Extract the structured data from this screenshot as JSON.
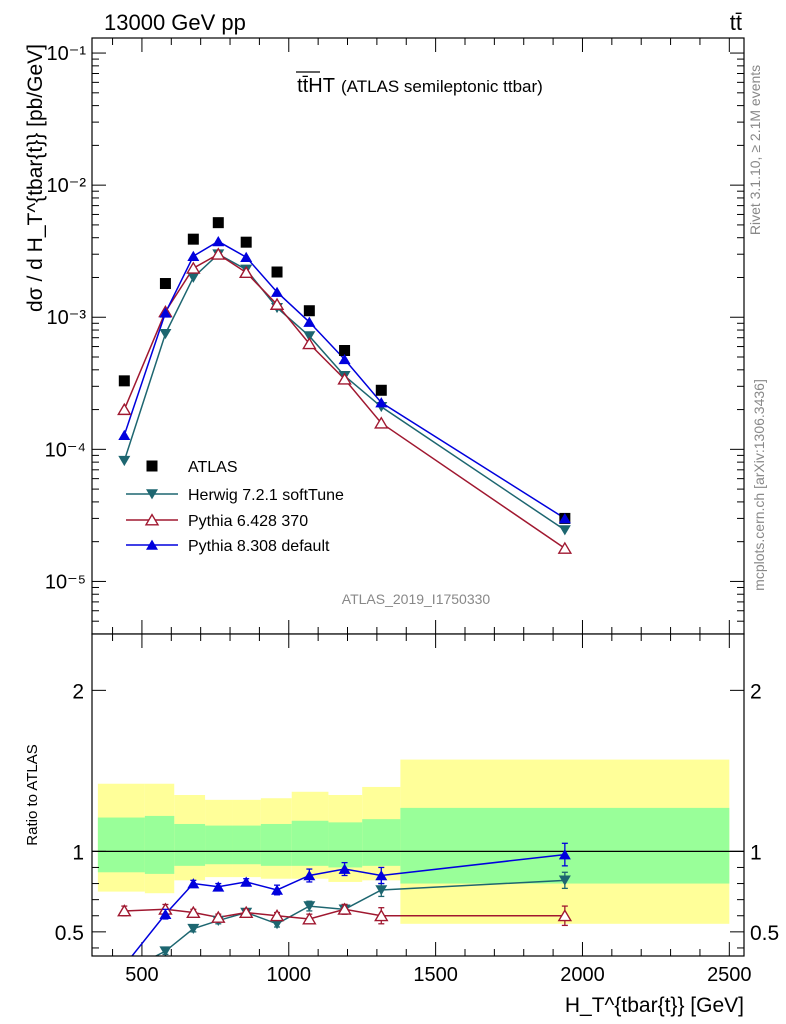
{
  "header": {
    "left": "13000 GeV pp",
    "right": "tt̄"
  },
  "side_text": {
    "rivet": "Rivet 3.1.10, ≥ 2.1M events",
    "mcplots": "mcplots.cern.ch [arXiv:1306.3436]"
  },
  "chart_data": [
    {
      "type": "line",
      "title_main": "tt̄HT",
      "title_sub": "(ATLAS semileptonic ttbar)",
      "watermark": "ATLAS_2019_I1750330",
      "ylabel": "dσ / d H_T^{tbar{t}} [pb/GeV]",
      "yscale": "log",
      "ylim": [
        4e-06,
        0.13
      ],
      "xlim": [
        330,
        2550
      ],
      "x": [
        440,
        580,
        675,
        760,
        855,
        960,
        1070,
        1190,
        1315,
        1940
      ],
      "legend_position": "bottom-left",
      "series": [
        {
          "name": "ATLAS",
          "color": "#000000",
          "marker": "square",
          "values": [
            0.00033,
            0.0018,
            0.0039,
            0.0052,
            0.0037,
            0.0022,
            0.00112,
            0.00056,
            0.00028,
            3e-05
          ]
        },
        {
          "name": "Herwig 7.2.1 softTune",
          "color": "#1d6670",
          "marker": "triangle-down",
          "values": [
            8.2e-05,
            0.00075,
            0.002,
            0.003,
            0.0023,
            0.00118,
            0.00072,
            0.00036,
            0.00021,
            2.45e-05
          ]
        },
        {
          "name": "Pythia 6.428 370",
          "color": "#a01830",
          "marker": "triangle-up-open",
          "values": [
            0.0002,
            0.0011,
            0.00235,
            0.003,
            0.00218,
            0.00125,
            0.00063,
            0.00034,
            0.000158,
            1.78e-05
          ]
        },
        {
          "name": "Pythia 8.308 default",
          "color": "#0000dd",
          "marker": "triangle-up",
          "values": [
            0.000128,
            0.00108,
            0.0029,
            0.00375,
            0.00285,
            0.00155,
            0.00092,
            0.00048,
            0.000226,
            3e-05
          ]
        }
      ],
      "legend": [
        "ATLAS",
        "Herwig 7.2.1 softTune",
        "Pythia 6.428 370",
        "Pythia 8.308 default"
      ],
      "yticks": [
        {
          "value": 0.1,
          "label": "10⁻¹"
        },
        {
          "value": 0.01,
          "label": "10⁻²"
        },
        {
          "value": 0.001,
          "label": "10⁻³"
        },
        {
          "value": 0.0001,
          "label": "10⁻⁴"
        },
        {
          "value": 1e-05,
          "label": "10⁻⁵"
        }
      ]
    },
    {
      "type": "line",
      "ylabel": "Ratio to ATLAS",
      "xlabel": "H_T^{tbar{t}} [GeV]",
      "ylim": [
        0.35,
        2.35
      ],
      "xlim": [
        330,
        2550
      ],
      "xticks": [
        500,
        1000,
        1500,
        2000,
        2500
      ],
      "yticks": [
        0.5,
        1,
        2
      ],
      "reference": 1,
      "bins": [
        350,
        510,
        610,
        715,
        810,
        905,
        1010,
        1135,
        1250,
        1380,
        2500
      ],
      "band_yellow": [
        [
          0.75,
          1.42
        ],
        [
          0.74,
          1.42
        ],
        [
          0.82,
          1.35
        ],
        [
          0.84,
          1.32
        ],
        [
          0.84,
          1.32
        ],
        [
          0.83,
          1.33
        ],
        [
          0.83,
          1.37
        ],
        [
          0.81,
          1.35
        ],
        [
          0.82,
          1.4
        ],
        [
          0.55,
          1.57
        ]
      ],
      "band_green": [
        [
          0.87,
          1.21
        ],
        [
          0.86,
          1.22
        ],
        [
          0.91,
          1.17
        ],
        [
          0.92,
          1.16
        ],
        [
          0.92,
          1.16
        ],
        [
          0.91,
          1.17
        ],
        [
          0.91,
          1.19
        ],
        [
          0.9,
          1.18
        ],
        [
          0.91,
          1.2
        ],
        [
          0.8,
          1.27
        ]
      ],
      "x": [
        440,
        580,
        675,
        760,
        855,
        960,
        1070,
        1190,
        1315,
        1940
      ],
      "series": [
        {
          "name": "Herwig 7.2.1 softTune",
          "color": "#1d6670",
          "marker": "triangle-down",
          "values": [
            0.25,
            0.38,
            0.52,
            0.57,
            0.62,
            0.55,
            0.66,
            0.64,
            0.76,
            0.82
          ],
          "errors": [
            0.02,
            0.02,
            0.02,
            0.02,
            0.02,
            0.02,
            0.03,
            0.03,
            0.04,
            0.05
          ]
        },
        {
          "name": "Pythia 6.428 370",
          "color": "#a01830",
          "marker": "triangle-up-open",
          "values": [
            0.63,
            0.64,
            0.62,
            0.59,
            0.62,
            0.6,
            0.58,
            0.64,
            0.6,
            0.6
          ],
          "errors": [
            0.03,
            0.03,
            0.02,
            0.02,
            0.02,
            0.02,
            0.03,
            0.03,
            0.05,
            0.06
          ]
        },
        {
          "name": "Pythia 8.308 default",
          "color": "#0000dd",
          "marker": "triangle-up",
          "values": [
            0.29,
            0.61,
            0.8,
            0.78,
            0.81,
            0.76,
            0.85,
            0.89,
            0.85,
            0.98
          ],
          "errors": [
            0.02,
            0.03,
            0.02,
            0.02,
            0.02,
            0.03,
            0.04,
            0.04,
            0.05,
            0.07
          ]
        }
      ]
    }
  ]
}
